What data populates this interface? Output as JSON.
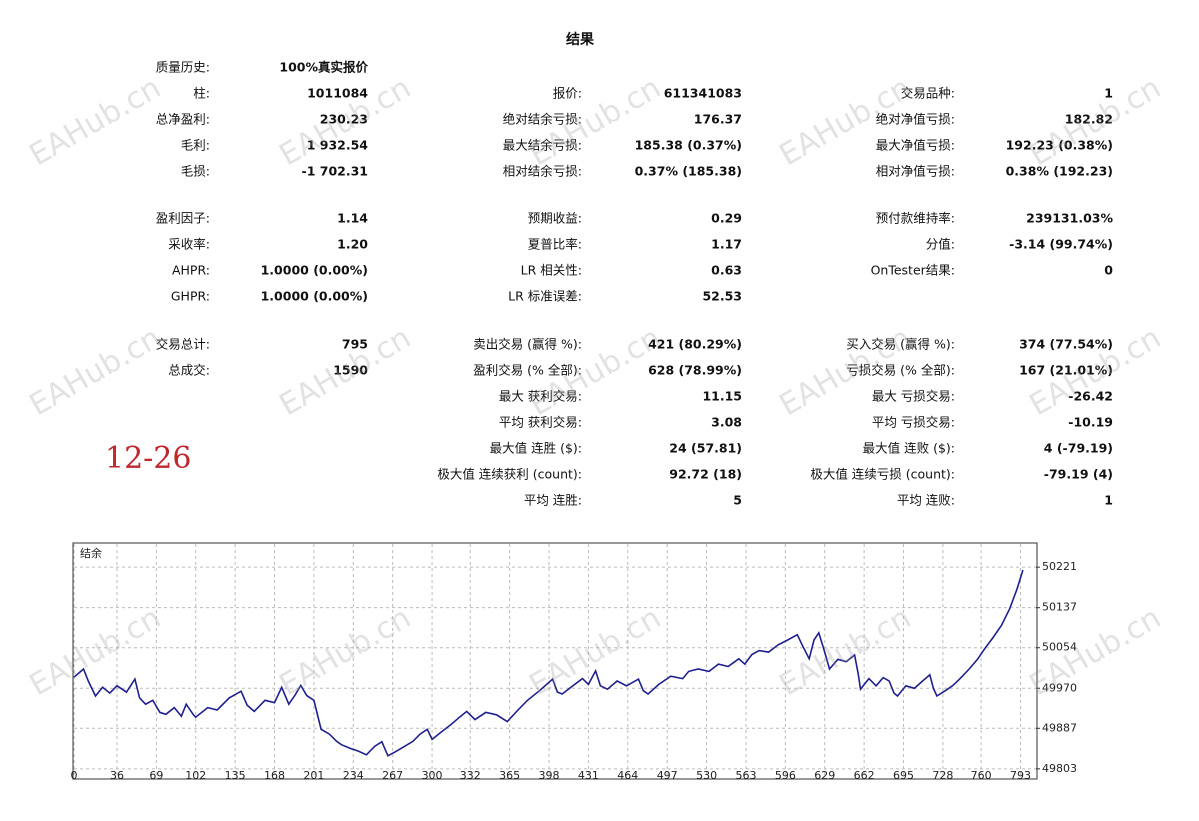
{
  "header": {
    "title": "结果"
  },
  "stats": {
    "rows": [
      [
        {
          "label": "质量历史:",
          "value": "100%真实报价"
        },
        null,
        null
      ],
      [
        {
          "label": "柱:",
          "value": "1011084"
        },
        {
          "label": "报价:",
          "value": "611341083"
        },
        {
          "label": "交易品种:",
          "value": "1"
        }
      ],
      [
        {
          "label": "总净盈利:",
          "value": "230.23"
        },
        {
          "label": "绝对结余亏损:",
          "value": "176.37"
        },
        {
          "label": "绝对净值亏损:",
          "value": "182.82"
        }
      ],
      [
        {
          "label": "毛利:",
          "value": "1 932.54"
        },
        {
          "label": "最大结余亏损:",
          "value": "185.38 (0.37%)"
        },
        {
          "label": "最大净值亏损:",
          "value": "192.23 (0.38%)"
        }
      ],
      [
        {
          "label": "毛损:",
          "value": "-1 702.31"
        },
        {
          "label": "相对结余亏损:",
          "value": "0.37% (185.38)"
        },
        {
          "label": "相对净值亏损:",
          "value": "0.38% (192.23)"
        }
      ],
      [
        {
          "label": "盈利因子:",
          "value": "1.14"
        },
        {
          "label": "预期收益:",
          "value": "0.29"
        },
        {
          "label": "预付款维持率:",
          "value": "239131.03%"
        }
      ],
      [
        {
          "label": "采收率:",
          "value": "1.20"
        },
        {
          "label": "夏普比率:",
          "value": "1.17"
        },
        {
          "label": "分值:",
          "value": "-3.14 (99.74%)"
        }
      ],
      [
        {
          "label": "AHPR:",
          "value": "1.0000 (0.00%)"
        },
        {
          "label": "LR 相关性:",
          "value": "0.63"
        },
        {
          "label": "OnTester结果:",
          "value": "0"
        }
      ],
      [
        {
          "label": "GHPR:",
          "value": "1.0000 (0.00%)"
        },
        {
          "label": "LR 标准误差:",
          "value": "52.53"
        },
        null
      ],
      [
        {
          "label": "交易总计:",
          "value": "795"
        },
        {
          "label": "卖出交易 (赢得 %):",
          "value": "421 (80.29%)"
        },
        {
          "label": "买入交易 (赢得 %):",
          "value": "374 (77.54%)"
        }
      ],
      [
        {
          "label": "总成交:",
          "value": "1590"
        },
        {
          "label": "盈利交易 (% 全部):",
          "value": "628 (78.99%)"
        },
        {
          "label": "亏损交易 (% 全部):",
          "value": "167 (21.01%)"
        }
      ],
      [
        null,
        {
          "label": "最大 获利交易:",
          "value": "11.15"
        },
        {
          "label": "最大 亏损交易:",
          "value": "-26.42"
        }
      ],
      [
        null,
        {
          "label": "平均 获利交易:",
          "value": "3.08"
        },
        {
          "label": "平均 亏损交易:",
          "value": "-10.19"
        }
      ],
      [
        null,
        {
          "label": "最大值 连胜 ($):",
          "value": "24 (57.81)"
        },
        {
          "label": "最大值 连败 ($):",
          "value": "4 (-79.19)"
        }
      ],
      [
        null,
        {
          "label": "极大值 连续获利 (count):",
          "value": "92.72 (18)"
        },
        {
          "label": "极大值 连续亏损 (count):",
          "value": "-79.19 (4)"
        }
      ],
      [
        null,
        {
          "label": "平均 连胜:",
          "value": "5"
        },
        {
          "label": "平均 连败:",
          "value": "1"
        }
      ]
    ]
  },
  "annotation": "12-26",
  "watermark": "EAHub.cn",
  "chart_data": {
    "type": "line",
    "x": [
      0,
      8,
      12,
      18,
      24,
      30,
      36,
      44,
      51,
      55,
      60,
      66,
      72,
      77,
      84,
      90,
      94,
      100,
      102,
      112,
      120,
      130,
      140,
      145,
      151,
      160,
      168,
      174,
      180,
      185,
      190,
      195,
      201,
      207,
      214,
      220,
      224,
      232,
      238,
      245,
      252,
      258,
      263,
      269,
      276,
      284,
      290,
      296,
      300,
      308,
      316,
      323,
      329,
      336,
      345,
      354,
      363,
      372,
      380,
      390,
      401,
      405,
      409,
      418,
      426,
      431,
      437,
      441,
      447,
      455,
      463,
      473,
      477,
      481,
      490,
      500,
      510,
      515,
      523,
      532,
      540,
      548,
      557,
      562,
      568,
      574,
      582,
      590,
      598,
      606,
      610,
      616,
      620,
      624,
      629,
      633,
      640,
      647,
      654,
      657,
      659,
      666,
      672,
      678,
      683,
      687,
      690,
      697,
      704,
      711,
      717,
      720,
      723,
      730,
      736,
      742,
      750,
      757,
      763,
      770,
      777,
      784,
      790,
      795
    ],
    "series": [
      {
        "name": "结余",
        "color": "#1f1f8f",
        "values": [
          49993,
          50010,
          49985,
          49954,
          49972,
          49960,
          49975,
          49962,
          49989,
          49950,
          49937,
          49945,
          49920,
          49916,
          49930,
          49912,
          49937,
          49915,
          49910,
          49930,
          49925,
          49950,
          49964,
          49935,
          49922,
          49945,
          49940,
          49972,
          49937,
          49955,
          49976,
          49955,
          49945,
          49885,
          49875,
          49860,
          49853,
          49845,
          49840,
          49832,
          49850,
          49859,
          49830,
          49838,
          49848,
          49860,
          49875,
          49885,
          49864,
          49880,
          49895,
          49910,
          49922,
          49905,
          49920,
          49915,
          49901,
          49925,
          49945,
          49965,
          49989,
          49962,
          49958,
          49975,
          49990,
          49978,
          50006,
          49975,
          49968,
          49985,
          49975,
          49989,
          49965,
          49958,
          49978,
          49995,
          49990,
          50005,
          50010,
          50005,
          50020,
          50015,
          50031,
          50020,
          50040,
          50048,
          50045,
          50060,
          50070,
          50081,
          50060,
          50031,
          50070,
          50085,
          50045,
          50010,
          50030,
          50025,
          50039,
          50000,
          49968,
          49990,
          49975,
          49992,
          49985,
          49960,
          49954,
          49975,
          49970,
          49985,
          49998,
          49970,
          49954,
          49965,
          49975,
          49989,
          50010,
          50030,
          50052,
          50075,
          50100,
          50135,
          50175,
          50215
        ]
      }
    ],
    "xlim": [
      0,
      806
    ],
    "xticks": [
      0,
      36,
      69,
      102,
      135,
      168,
      201,
      234,
      267,
      300,
      332,
      365,
      398,
      431,
      464,
      497,
      530,
      563,
      596,
      629,
      662,
      695,
      728,
      760,
      793
    ],
    "ylim": [
      49784,
      50269
    ],
    "yticks": [
      49803,
      49887,
      49970,
      50054,
      50137,
      50221
    ],
    "grid": true
  }
}
